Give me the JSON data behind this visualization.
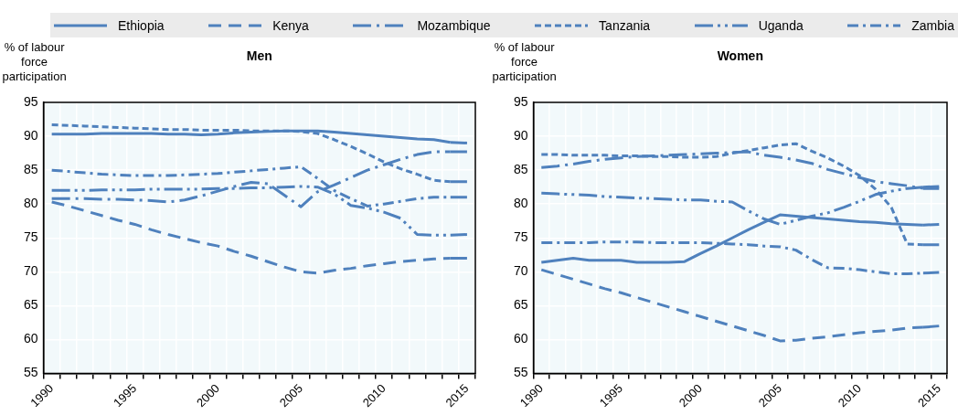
{
  "chart_data": [
    {
      "type": "line",
      "title": "Men",
      "ylabel": "% of labour force participation",
      "categories": [
        "1990",
        null,
        null,
        null,
        null,
        "1995",
        null,
        null,
        null,
        null,
        "2000",
        null,
        null,
        null,
        null,
        "2005",
        null,
        null,
        null,
        null,
        "2010",
        null,
        null,
        null,
        null,
        "2015"
      ],
      "ylim": [
        55,
        95
      ],
      "yticks": [
        55,
        60,
        65,
        70,
        75,
        80,
        85,
        90,
        95
      ],
      "grid": true,
      "legend": "top",
      "marker": "none",
      "series": [
        {
          "name": "Ethiopia",
          "color": "#4f81bd",
          "line_style": "solid",
          "values": [
            90.3,
            90.3,
            90.3,
            90.4,
            90.4,
            90.4,
            90.4,
            90.3,
            90.3,
            90.2,
            90.3,
            90.5,
            90.6,
            90.7,
            90.8,
            90.8,
            90.8,
            90.6,
            90.4,
            90.2,
            90.0,
            89.8,
            89.6,
            89.5,
            89.1,
            89.0
          ]
        },
        {
          "name": "Kenya",
          "color": "#4f81bd",
          "line_style": "dashed",
          "values": [
            80.3,
            79.7,
            79.0,
            78.3,
            77.6,
            77.0,
            76.2,
            75.5,
            74.9,
            74.3,
            73.8,
            73.0,
            72.3,
            71.5,
            70.7,
            70.0,
            69.8,
            70.2,
            70.5,
            70.9,
            71.2,
            71.5,
            71.7,
            71.9,
            72.0,
            72.0
          ]
        },
        {
          "name": "Mozambique",
          "color": "#4f81bd",
          "line_style": "longdashdot",
          "values": [
            80.8,
            80.8,
            80.8,
            80.7,
            80.7,
            80.6,
            80.5,
            80.3,
            80.6,
            81.2,
            81.9,
            82.6,
            83.2,
            83.0,
            81.3,
            79.6,
            81.8,
            82.8,
            83.9,
            85.0,
            85.8,
            86.6,
            87.3,
            87.7,
            87.7,
            87.7
          ]
        },
        {
          "name": "Tanzania",
          "color": "#4f81bd",
          "line_style": "shortdash",
          "values": [
            91.7,
            91.6,
            91.5,
            91.4,
            91.3,
            91.2,
            91.1,
            91.0,
            91.0,
            90.9,
            90.9,
            90.9,
            90.8,
            90.8,
            90.8,
            90.7,
            90.4,
            89.5,
            88.5,
            87.4,
            86.2,
            85.2,
            84.4,
            83.5,
            83.3,
            83.3
          ]
        },
        {
          "name": "Uganda",
          "color": "#4f81bd",
          "line_style": "dashdotdot",
          "values": [
            82.0,
            82.0,
            82.0,
            82.1,
            82.1,
            82.1,
            82.2,
            82.2,
            82.2,
            82.2,
            82.3,
            82.3,
            82.4,
            82.4,
            82.5,
            82.6,
            82.5,
            81.5,
            79.8,
            79.4,
            78.8,
            77.9,
            75.5,
            75.4,
            75.4,
            75.5
          ]
        },
        {
          "name": "Zambia",
          "color": "#4f81bd",
          "line_style": "dashdot",
          "values": [
            85.0,
            84.8,
            84.6,
            84.4,
            84.3,
            84.2,
            84.2,
            84.2,
            84.3,
            84.4,
            84.5,
            84.7,
            84.9,
            85.1,
            85.3,
            85.5,
            83.8,
            82.0,
            80.8,
            79.7,
            80.0,
            80.4,
            80.8,
            81.0,
            81.0,
            81.0
          ]
        }
      ]
    },
    {
      "type": "line",
      "title": "Women",
      "ylabel": "% of labour force participation",
      "categories": [
        "1990",
        null,
        null,
        null,
        null,
        "1995",
        null,
        null,
        null,
        null,
        "2000",
        null,
        null,
        null,
        null,
        "2005",
        null,
        null,
        null,
        null,
        "2010",
        null,
        null,
        null,
        null,
        "2015"
      ],
      "ylim": [
        55,
        95
      ],
      "yticks": [
        55,
        60,
        65,
        70,
        75,
        80,
        85,
        90,
        95
      ],
      "grid": true,
      "marker": "none",
      "series": [
        {
          "name": "Ethiopia",
          "color": "#4f81bd",
          "line_style": "solid",
          "values": [
            71.4,
            71.7,
            72.0,
            71.7,
            71.7,
            71.7,
            71.4,
            71.4,
            71.4,
            71.5,
            72.7,
            73.8,
            75.0,
            76.2,
            77.3,
            78.4,
            78.2,
            78.0,
            77.8,
            77.6,
            77.4,
            77.3,
            77.1,
            77.0,
            76.9,
            77.0
          ]
        },
        {
          "name": "Kenya",
          "color": "#4f81bd",
          "line_style": "dashed",
          "values": [
            70.3,
            69.6,
            68.9,
            68.2,
            67.5,
            66.9,
            66.2,
            65.5,
            64.8,
            64.1,
            63.4,
            62.7,
            62.0,
            61.3,
            60.6,
            59.8,
            59.9,
            60.2,
            60.4,
            60.7,
            61.0,
            61.2,
            61.4,
            61.7,
            61.8,
            62.0
          ]
        },
        {
          "name": "Mozambique",
          "color": "#4f81bd",
          "line_style": "longdashdot",
          "values": [
            85.4,
            85.6,
            85.9,
            86.3,
            86.6,
            86.8,
            87.0,
            87.1,
            87.2,
            87.3,
            87.4,
            87.5,
            87.6,
            87.7,
            87.2,
            86.9,
            86.5,
            86.0,
            85.1,
            84.5,
            83.9,
            83.3,
            83.0,
            82.7,
            82.3,
            82.3
          ]
        },
        {
          "name": "Tanzania",
          "color": "#4f81bd",
          "line_style": "shortdash",
          "values": [
            87.3,
            87.3,
            87.2,
            87.2,
            87.2,
            87.1,
            87.1,
            87.0,
            87.0,
            86.9,
            86.9,
            87.0,
            87.5,
            87.9,
            88.3,
            88.7,
            88.9,
            87.8,
            86.8,
            85.6,
            84.2,
            82.2,
            79.5,
            74.1,
            74.0,
            74.0
          ]
        },
        {
          "name": "Uganda",
          "color": "#4f81bd",
          "line_style": "dashdotdot",
          "values": [
            81.6,
            81.5,
            81.4,
            81.3,
            81.1,
            81.0,
            80.9,
            80.8,
            80.7,
            80.6,
            80.6,
            80.4,
            80.3,
            79.0,
            77.8,
            77.0,
            77.6,
            78.2,
            78.7,
            79.5,
            80.4,
            81.4,
            81.9,
            82.3,
            82.5,
            82.6
          ]
        },
        {
          "name": "Zambia",
          "color": "#4f81bd",
          "line_style": "dashdot",
          "values": [
            74.3,
            74.3,
            74.3,
            74.3,
            74.4,
            74.4,
            74.4,
            74.3,
            74.3,
            74.3,
            74.3,
            74.2,
            74.1,
            74.0,
            73.8,
            73.7,
            73.2,
            71.8,
            70.6,
            70.5,
            70.3,
            70.0,
            69.7,
            69.7,
            69.8,
            69.9
          ]
        }
      ]
    }
  ]
}
